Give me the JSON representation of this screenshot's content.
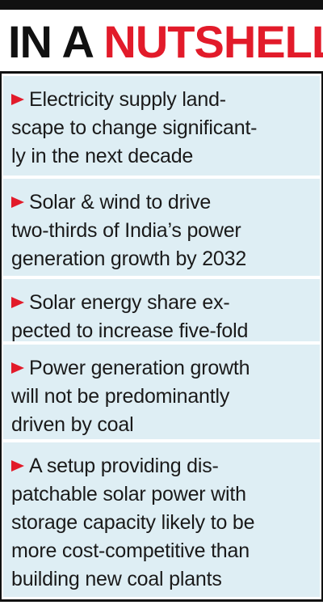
{
  "header": {
    "title_part1": "IN A",
    "title_part2": "NUTSHELL"
  },
  "items": [
    {
      "lines": [
        "Electricity supply land-",
        "scape to change significant-",
        "ly in the next decade"
      ]
    },
    {
      "lines": [
        "Solar & wind to drive",
        "two-thirds of India’s power",
        "generation growth by 2032"
      ]
    },
    {
      "lines": [
        "Solar energy share ex-",
        "pected to increase five-fold"
      ]
    },
    {
      "lines": [
        "Power generation growth",
        "will not be predominantly",
        "driven by coal"
      ]
    },
    {
      "lines": [
        "A setup providing dis-",
        "patchable solar power with",
        "storage capacity likely to be",
        "more cost-competitive than",
        "building new coal plants"
      ]
    }
  ],
  "colors": {
    "accent": "#e21b2a",
    "panel": "#deeef4",
    "text": "#1a1a1a"
  }
}
